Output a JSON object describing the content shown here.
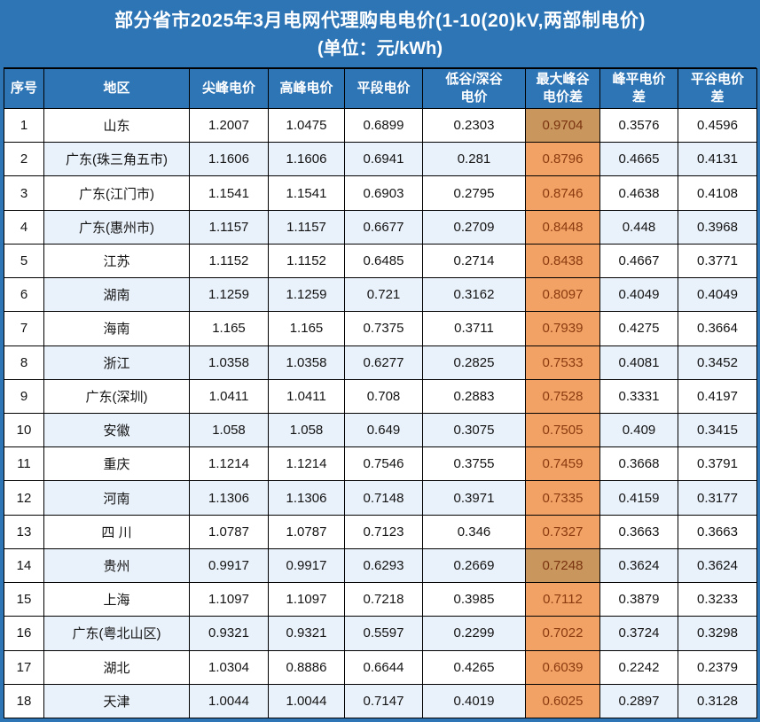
{
  "title": {
    "line1": "部分省市2025年3月电网代理购电电价(1-10(20)kV,两部制电价)",
    "line2": "(单位：元/kWh)"
  },
  "table": {
    "headers": [
      "序号",
      "地区",
      "尖峰电价",
      "高峰电价",
      "平段电价",
      "低谷/深谷\n电价",
      "最大峰谷\n电价差",
      "峰平电价\n差",
      "平谷电价\n差"
    ],
    "column_names": [
      "seq",
      "region",
      "sharp-peak-price",
      "high-peak-price",
      "flat-period-price",
      "valley-deep-valley-price",
      "max-peak-valley-diff",
      "peak-flat-diff",
      "flat-valley-diff"
    ],
    "rows": [
      {
        "no": "1",
        "region": "山东",
        "values": [
          "1.2007",
          "1.0475",
          "0.6899",
          "0.2303",
          "0.9704",
          "0.3576",
          "0.4596"
        ],
        "highlight_dark": true
      },
      {
        "no": "2",
        "region": "广东(珠三角五市)",
        "values": [
          "1.1606",
          "1.1606",
          "0.6941",
          "0.281",
          "0.8796",
          "0.4665",
          "0.4131"
        ],
        "highlight_dark": false
      },
      {
        "no": "3",
        "region": "广东(江门市)",
        "values": [
          "1.1541",
          "1.1541",
          "0.6903",
          "0.2795",
          "0.8746",
          "0.4638",
          "0.4108"
        ],
        "highlight_dark": false
      },
      {
        "no": "4",
        "region": "广东(惠州市)",
        "values": [
          "1.1157",
          "1.1157",
          "0.6677",
          "0.2709",
          "0.8448",
          "0.448",
          "0.3968"
        ],
        "highlight_dark": false
      },
      {
        "no": "5",
        "region": "江苏",
        "values": [
          "1.1152",
          "1.1152",
          "0.6485",
          "0.2714",
          "0.8438",
          "0.4667",
          "0.3771"
        ],
        "highlight_dark": false
      },
      {
        "no": "6",
        "region": "湖南",
        "values": [
          "1.1259",
          "1.1259",
          "0.721",
          "0.3162",
          "0.8097",
          "0.4049",
          "0.4049"
        ],
        "highlight_dark": false
      },
      {
        "no": "7",
        "region": "海南",
        "values": [
          "1.165",
          "1.165",
          "0.7375",
          "0.3711",
          "0.7939",
          "0.4275",
          "0.3664"
        ],
        "highlight_dark": false
      },
      {
        "no": "8",
        "region": "浙江",
        "values": [
          "1.0358",
          "1.0358",
          "0.6277",
          "0.2825",
          "0.7533",
          "0.4081",
          "0.3452"
        ],
        "highlight_dark": false
      },
      {
        "no": "9",
        "region": "广东(深圳)",
        "values": [
          "1.0411",
          "1.0411",
          "0.708",
          "0.2883",
          "0.7528",
          "0.3331",
          "0.4197"
        ],
        "highlight_dark": false
      },
      {
        "no": "10",
        "region": "安徽",
        "values": [
          "1.058",
          "1.058",
          "0.649",
          "0.3075",
          "0.7505",
          "0.409",
          "0.3415"
        ],
        "highlight_dark": false
      },
      {
        "no": "11",
        "region": "重庆",
        "values": [
          "1.1214",
          "1.1214",
          "0.7546",
          "0.3755",
          "0.7459",
          "0.3668",
          "0.3791"
        ],
        "highlight_dark": false
      },
      {
        "no": "12",
        "region": "河南",
        "values": [
          "1.1306",
          "1.1306",
          "0.7148",
          "0.3971",
          "0.7335",
          "0.4159",
          "0.3177"
        ],
        "highlight_dark": false
      },
      {
        "no": "13",
        "region": "四 川",
        "values": [
          "1.0787",
          "1.0787",
          "0.7123",
          "0.346",
          "0.7327",
          "0.3663",
          "0.3663"
        ],
        "highlight_dark": false
      },
      {
        "no": "14",
        "region": "贵州",
        "values": [
          "0.9917",
          "0.9917",
          "0.6293",
          "0.2669",
          "0.7248",
          "0.3624",
          "0.3624"
        ],
        "highlight_dark": true
      },
      {
        "no": "15",
        "region": "上海",
        "values": [
          "1.1097",
          "1.1097",
          "0.7218",
          "0.3985",
          "0.7112",
          "0.3879",
          "0.3233"
        ],
        "highlight_dark": false
      },
      {
        "no": "16",
        "region": "广东(粤北山区)",
        "values": [
          "0.9321",
          "0.9321",
          "0.5597",
          "0.2299",
          "0.7022",
          "0.3724",
          "0.3298"
        ],
        "highlight_dark": false
      },
      {
        "no": "17",
        "region": "湖北",
        "values": [
          "1.0304",
          "0.8886",
          "0.6644",
          "0.4265",
          "0.6039",
          "0.2242",
          "0.2379"
        ],
        "highlight_dark": false
      },
      {
        "no": "18",
        "region": "天津",
        "values": [
          "1.0044",
          "1.0044",
          "0.7147",
          "0.4019",
          "0.6025",
          "0.2897",
          "0.3128"
        ],
        "highlight_dark": false
      }
    ]
  },
  "colors": {
    "header_blue": "#2E75B6",
    "stripe_blue": "#E9F1FA",
    "highlight_orange": "#F2A264",
    "highlight_orange_dark": "#C9975E",
    "highlight_text": "#8A3B10",
    "grid_line": "#000000"
  }
}
